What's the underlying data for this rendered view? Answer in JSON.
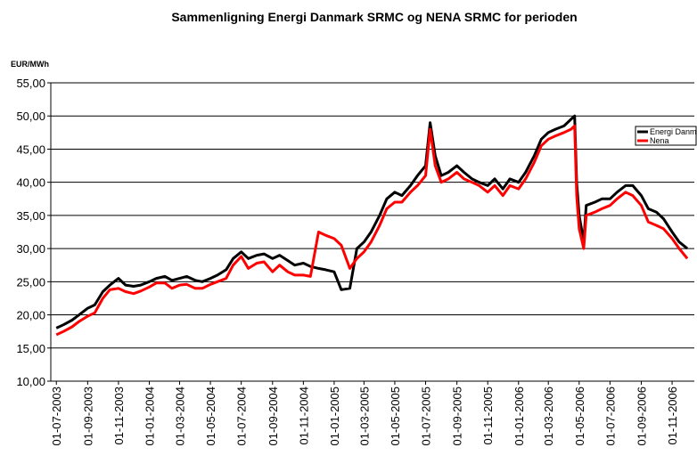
{
  "chart_data": {
    "type": "line",
    "title": "Sammenligning Energi Danmark SRMC og NENA SRMC for perioden",
    "y_label": "EUR/MWh",
    "x": [
      "01-07-2003",
      "15-07-2003",
      "01-08-2003",
      "15-08-2003",
      "01-09-2003",
      "15-09-2003",
      "01-10-2003",
      "15-10-2003",
      "01-11-2003",
      "15-11-2003",
      "01-12-2003",
      "15-12-2003",
      "01-01-2004",
      "15-01-2004",
      "01-02-2004",
      "15-02-2004",
      "01-03-2004",
      "15-03-2004",
      "01-04-2004",
      "15-04-2004",
      "01-05-2004",
      "15-05-2004",
      "01-06-2004",
      "15-06-2004",
      "01-07-2004",
      "15-07-2004",
      "01-08-2004",
      "15-08-2004",
      "01-09-2004",
      "15-09-2004",
      "01-10-2004",
      "15-10-2004",
      "01-11-2004",
      "15-11-2004",
      "01-12-2004",
      "15-12-2004",
      "01-01-2005",
      "15-01-2005",
      "01-02-2005",
      "15-02-2005",
      "01-03-2005",
      "15-03-2005",
      "01-04-2005",
      "15-04-2005",
      "01-05-2005",
      "15-05-2005",
      "01-06-2005",
      "15-06-2005",
      "01-07-2005",
      "10-07-2005",
      "20-07-2005",
      "01-08-2005",
      "15-08-2005",
      "01-09-2005",
      "15-09-2005",
      "01-10-2005",
      "15-10-2005",
      "01-11-2005",
      "15-11-2005",
      "01-12-2005",
      "15-12-2005",
      "01-01-2006",
      "15-01-2006",
      "01-02-2006",
      "15-02-2006",
      "01-03-2006",
      "15-03-2006",
      "01-04-2006",
      "15-04-2006",
      "22-04-2006",
      "26-04-2006",
      "01-05-2006",
      "10-05-2006",
      "15-05-2006",
      "01-06-2006",
      "15-06-2006",
      "01-07-2006",
      "15-07-2006",
      "01-08-2006",
      "15-08-2006",
      "01-09-2006",
      "15-09-2006",
      "01-10-2006",
      "15-10-2006",
      "01-11-2006",
      "15-11-2006",
      "01-12-2006"
    ],
    "series": [
      {
        "name": "Energi Danmark",
        "color": "#000000",
        "values": [
          18.0,
          18.5,
          19.2,
          20.0,
          21.0,
          21.5,
          23.5,
          24.5,
          25.5,
          24.5,
          24.3,
          24.5,
          25.0,
          25.5,
          25.8,
          25.2,
          25.5,
          25.8,
          25.2,
          25.0,
          25.5,
          26.0,
          26.8,
          28.5,
          29.5,
          28.5,
          29.0,
          29.2,
          28.5,
          29.0,
          28.2,
          27.5,
          27.8,
          27.3,
          27.0,
          26.8,
          26.5,
          23.8,
          24.0,
          30.0,
          31.0,
          32.5,
          35.0,
          37.5,
          38.5,
          38.0,
          39.5,
          41.0,
          42.5,
          49.0,
          44.0,
          41.0,
          41.5,
          42.5,
          41.5,
          40.5,
          40.0,
          39.5,
          40.5,
          39.0,
          40.5,
          40.0,
          41.5,
          44.0,
          46.5,
          47.5,
          48.0,
          48.5,
          49.5,
          50.0,
          40.0,
          35.0,
          31.0,
          36.5,
          37.0,
          37.5,
          37.5,
          38.5,
          39.5,
          39.5,
          38.0,
          36.0,
          35.5,
          34.5,
          32.5,
          31.0,
          30.0
        ]
      },
      {
        "name": "Nena",
        "color": "#ff0000",
        "values": [
          17.0,
          17.5,
          18.2,
          19.0,
          19.8,
          20.3,
          22.5,
          23.8,
          24.0,
          23.5,
          23.2,
          23.6,
          24.2,
          24.8,
          24.8,
          24.0,
          24.5,
          24.6,
          24.0,
          24.0,
          24.6,
          25.0,
          25.5,
          27.5,
          28.8,
          27.0,
          27.8,
          28.0,
          26.5,
          27.5,
          26.5,
          26.0,
          26.0,
          25.8,
          32.5,
          32.0,
          31.5,
          30.5,
          27.0,
          28.5,
          29.5,
          31.0,
          33.5,
          36.0,
          37.0,
          37.0,
          38.5,
          39.5,
          41.0,
          48.0,
          42.5,
          40.0,
          40.5,
          41.5,
          40.5,
          40.0,
          39.5,
          38.5,
          39.5,
          38.0,
          39.5,
          39.0,
          40.5,
          43.0,
          45.5,
          46.5,
          47.0,
          47.5,
          48.0,
          48.5,
          38.0,
          33.0,
          30.0,
          35.0,
          35.5,
          36.0,
          36.5,
          37.5,
          38.5,
          38.0,
          36.5,
          34.0,
          33.5,
          33.0,
          31.5,
          30.0,
          28.5
        ]
      }
    ],
    "xlim": [
      "20-06-2003",
      "15-12-2006"
    ],
    "xticks": [
      "01-07-2003",
      "01-09-2003",
      "01-11-2003",
      "01-01-2004",
      "01-03-2004",
      "01-05-2004",
      "01-07-2004",
      "01-09-2004",
      "01-11-2004",
      "01-01-2005",
      "01-03-2005",
      "01-05-2005",
      "01-07-2005",
      "01-09-2005",
      "01-11-2005",
      "01-01-2006",
      "01-03-2006",
      "01-05-2006",
      "01-07-2006",
      "01-09-2006",
      "01-11-2006"
    ],
    "ylim": [
      10,
      55
    ],
    "yticks": [
      {
        "value": 10,
        "label": "10,00"
      },
      {
        "value": 15,
        "label": "15,00"
      },
      {
        "value": 20,
        "label": "20,00"
      },
      {
        "value": 25,
        "label": "25,00"
      },
      {
        "value": 30,
        "label": "30,00"
      },
      {
        "value": 35,
        "label": "35,00"
      },
      {
        "value": 40,
        "label": "40,00"
      },
      {
        "value": 45,
        "label": "45,00"
      },
      {
        "value": 50,
        "label": "50,00"
      },
      {
        "value": 55,
        "label": "55,00"
      }
    ],
    "grid": true,
    "legend_position": "upper right"
  }
}
